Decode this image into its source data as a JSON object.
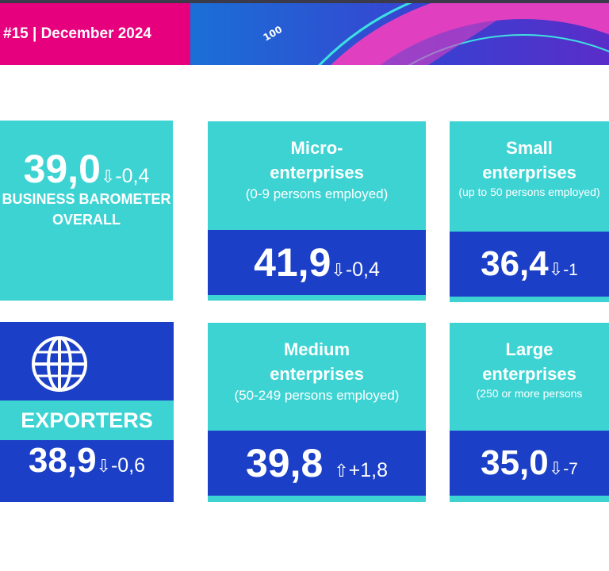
{
  "header": {
    "issue": "#15 | December 2024",
    "gauge_label": "100"
  },
  "overall": {
    "value": "39,0",
    "change": "-0,4",
    "direction": "down",
    "label_line1": "BUSINESS BAROMETER",
    "label_line2": "OVERALL"
  },
  "exporters": {
    "label": "EXPORTERS",
    "value": "38,9",
    "change": "-0,6",
    "direction": "down",
    "icon": "globe-icon"
  },
  "segments": [
    {
      "title1": "Micro-",
      "title2": "enterprises",
      "subtitle": "(0-9 persons employed)",
      "value": "41,9",
      "change": "-0,4",
      "direction": "down"
    },
    {
      "title1": "Small",
      "title2": "enterprises",
      "subtitle": "(up to 50 persons employed)",
      "value": "36,4",
      "change": "-1",
      "direction": "down"
    },
    {
      "title1": "Medium",
      "title2": "enterprises",
      "subtitle": "(50-249 persons employed)",
      "value": "39,8",
      "change": "+1,8",
      "direction": "up"
    },
    {
      "title1": "Large",
      "title2": "enterprises",
      "subtitle": "(250 or more persons",
      "value": "35,0",
      "change": "-7",
      "direction": "down"
    }
  ],
  "colors": {
    "pink": "#e6007e",
    "teal": "#3dd3d3",
    "blue": "#1b3fc6"
  }
}
